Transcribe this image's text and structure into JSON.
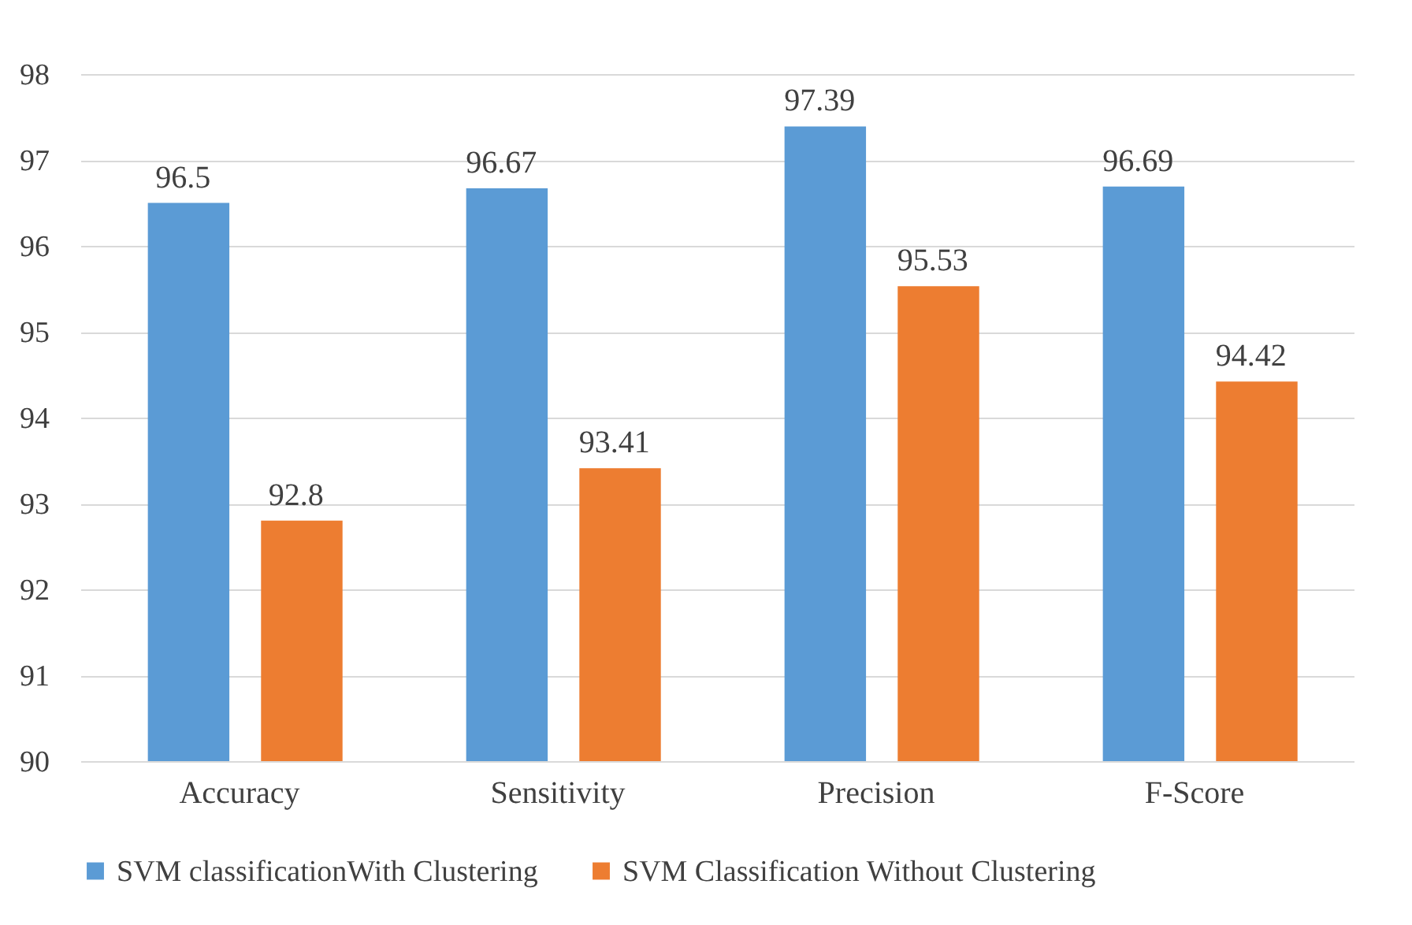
{
  "chart_data": {
    "type": "bar",
    "categories": [
      "Accuracy",
      "Sensitivity",
      "Precision",
      "F-Score"
    ],
    "series": [
      {
        "name": "SVM classificationWith Clustering",
        "color": "#5b9bd5",
        "values": [
          96.5,
          96.67,
          97.39,
          96.69
        ]
      },
      {
        "name": "SVM Classification Without Clustering",
        "color": "#ed7d31",
        "values": [
          92.8,
          93.41,
          95.53,
          94.42
        ]
      }
    ],
    "ylim": [
      90,
      98
    ],
    "yticks": [
      90,
      91,
      92,
      93,
      94,
      95,
      96,
      97,
      98
    ],
    "grid": "y",
    "legend": "bottom",
    "data_labels": true
  }
}
